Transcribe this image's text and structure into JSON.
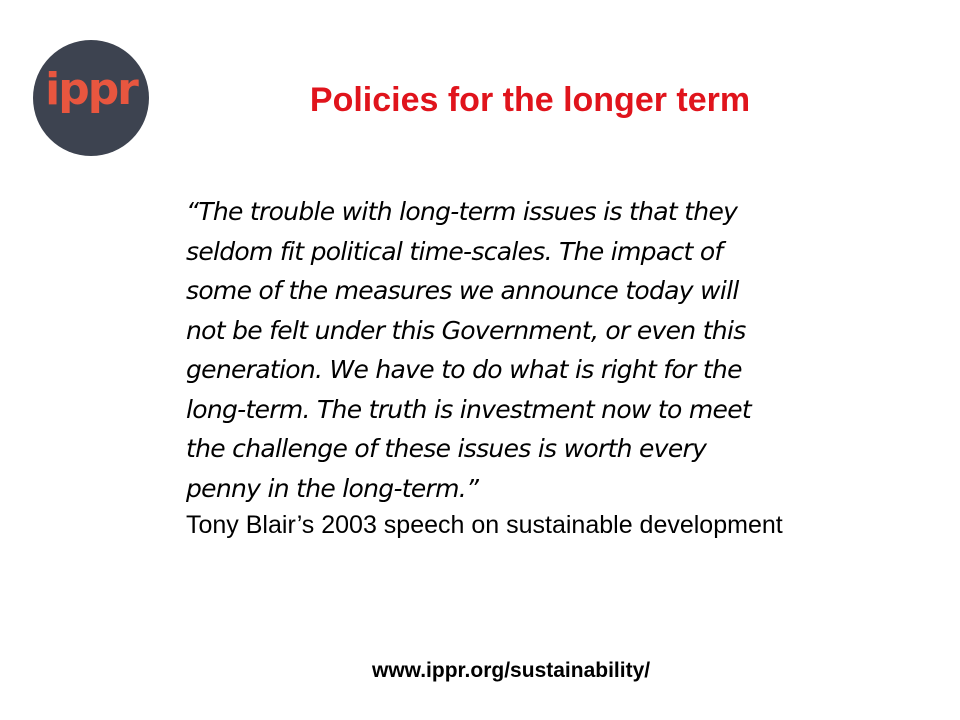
{
  "logo": {
    "text": "ippr"
  },
  "title": "Policies for the longer term",
  "quote": "  “The trouble with long-term issues is that they\nseldom fit political time-scales. The impact of\nsome of the measures we announce today will\nnot be felt under this Government, or even this\ngeneration. We have to do what is right for the\nlong-term. The truth is investment now to meet\nthe challenge of these issues is worth every\npenny in the long-term.”",
  "attribution": "Tony Blair’s 2003 speech on sustainable development",
  "url": "www.ippr.org/sustainability/",
  "colors": {
    "title": "#e0141c",
    "logo_bg": "#3d4350",
    "logo_text": "#e8563f"
  }
}
